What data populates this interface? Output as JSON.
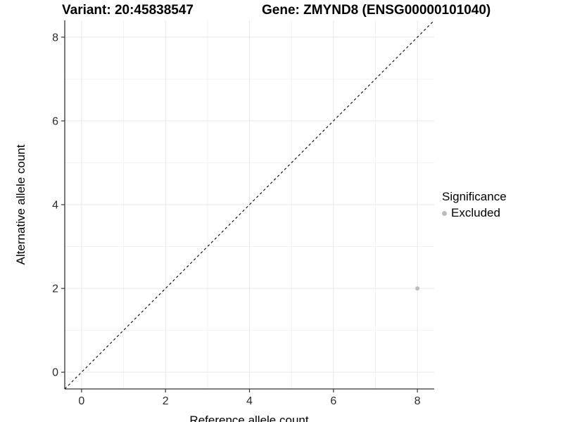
{
  "chart_data": {
    "type": "scatter",
    "title_left": "Variant: 20:45838547",
    "title_right": "Gene: ZMYND8 (ENSG00000101040)",
    "xlabel": "Reference allele count",
    "ylabel": "Alternative allele count",
    "xlim": [
      -0.4,
      8.4
    ],
    "ylim": [
      -0.4,
      8.4
    ],
    "x_ticks": [
      0,
      2,
      4,
      6,
      8
    ],
    "y_ticks": [
      0,
      2,
      4,
      6,
      8
    ],
    "x_minor_ticks": [
      1,
      3,
      5,
      7
    ],
    "y_minor_ticks": [
      1,
      3,
      5,
      7
    ],
    "grid": true,
    "series": [
      {
        "name": "Excluded",
        "color": "#bcbcbc",
        "points": [
          {
            "x": 8,
            "y": 2
          }
        ]
      }
    ],
    "reference_line": {
      "type": "identity",
      "style": "dashed",
      "color": "#000000"
    },
    "legend": {
      "title": "Significance",
      "position": "right",
      "items": [
        {
          "label": "Excluded",
          "color": "#bcbcbc"
        }
      ]
    },
    "colors": {
      "axis_line": "#333333",
      "tick_label": "#2b2b2b",
      "grid_major": "#e7e7e7",
      "grid_minor": "#f2f2f2"
    }
  }
}
